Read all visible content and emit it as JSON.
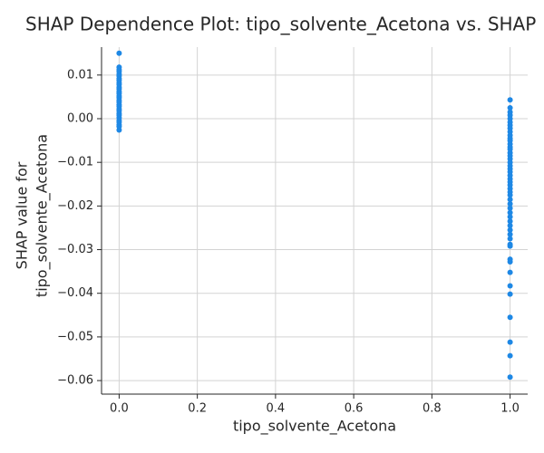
{
  "chart_data": {
    "type": "scatter",
    "title": "SHAP Dependence Plot: tipo_solvente_Acetona vs. SHAP",
    "xlabel": "tipo_solvente_Acetona",
    "ylabel": [
      "SHAP value for",
      "tipo_solvente_Acetona"
    ],
    "color": "#1e88e5",
    "grid": true,
    "xlim": [
      -0.045,
      1.045
    ],
    "ylim": [
      -0.0631,
      0.0164
    ],
    "xticks": [
      {
        "value": 0,
        "label": "0.0"
      },
      0.2,
      0.4,
      0.6,
      0.8,
      {
        "value": 1,
        "label": "1.0"
      }
    ],
    "yticks": [
      0.01,
      {
        "value": 0,
        "label": "0.00"
      },
      {
        "value": -0.01,
        "label": "−0.01"
      },
      {
        "value": -0.02,
        "label": "−0.02"
      },
      {
        "value": -0.03,
        "label": "−0.03"
      },
      {
        "value": -0.04,
        "label": "−0.04"
      },
      {
        "value": -0.05,
        "label": "−0.05"
      },
      {
        "value": -0.06,
        "label": "−0.06"
      }
    ],
    "x": [
      0,
      0,
      0,
      0,
      0,
      0,
      0,
      0,
      0,
      0,
      0,
      0,
      0,
      0,
      0,
      0,
      0,
      0,
      0,
      0,
      0,
      0,
      0,
      0,
      0,
      0,
      0,
      0,
      0,
      0,
      1,
      1,
      1,
      1,
      1,
      1,
      1,
      1,
      1,
      1,
      1,
      1,
      1,
      1,
      1,
      1,
      1,
      1,
      1,
      1,
      1,
      1,
      1,
      1,
      1,
      1,
      1,
      1,
      1,
      1,
      1,
      1,
      1,
      1,
      1,
      1,
      1,
      1,
      1,
      1,
      1,
      1,
      1,
      1,
      1,
      1,
      1,
      1,
      1,
      1
    ],
    "values": [
      0.015,
      0.0118,
      0.0112,
      0.0108,
      0.0102,
      0.0098,
      0.0092,
      0.0088,
      0.0082,
      0.0078,
      0.0072,
      0.0068,
      0.0062,
      0.0058,
      0.0052,
      0.0048,
      0.0042,
      0.0038,
      0.0032,
      0.0028,
      0.0022,
      0.0018,
      0.0012,
      0.0008,
      0.0002,
      -0.0004,
      -0.0008,
      -0.0014,
      -0.0018,
      -0.0026,
      0.0043,
      0.0025,
      0.0015,
      0.0008,
      0.0,
      -0.0008,
      -0.0015,
      -0.0022,
      -0.003,
      -0.0038,
      -0.0045,
      -0.005,
      -0.0058,
      -0.0065,
      -0.007,
      -0.0078,
      -0.0085,
      -0.0092,
      -0.01,
      -0.0108,
      -0.0115,
      -0.0122,
      -0.013,
      -0.0138,
      -0.0145,
      -0.0152,
      -0.016,
      -0.0168,
      -0.0175,
      -0.0185,
      -0.0195,
      -0.0205,
      -0.0215,
      -0.0225,
      -0.0235,
      -0.0245,
      -0.0255,
      -0.0265,
      -0.0275,
      -0.0288,
      -0.0292,
      -0.0322,
      -0.0328,
      -0.0352,
      -0.0383,
      -0.0402,
      -0.0455,
      -0.0512,
      -0.0543,
      -0.0592
    ]
  }
}
